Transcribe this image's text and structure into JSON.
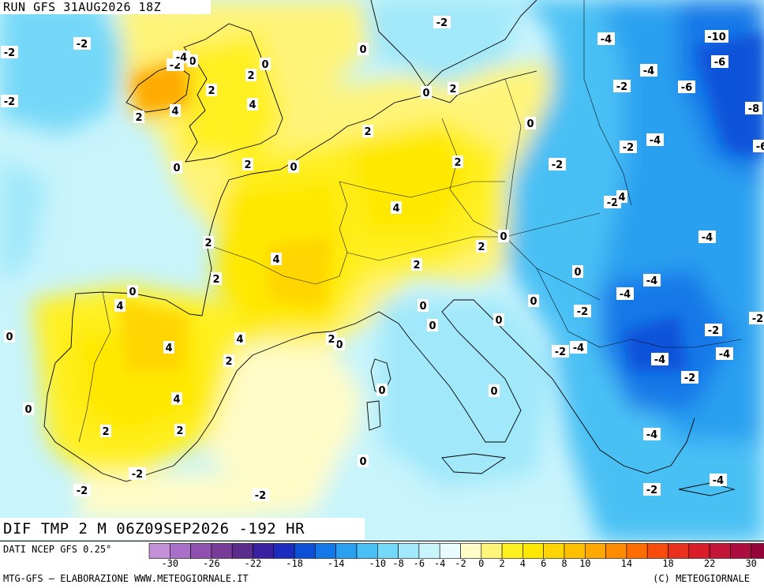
{
  "header": {
    "run_title": "RUN GFS 31AUG2026 18Z",
    "field_title": "DIF TMP 2 M 06Z09SEP2026 -192 HR"
  },
  "footer": {
    "source": "DATI NCEP GFS 0.25°",
    "credit_left": "MTG-GFS – ELABORAZIONE WWW.METEOGIORNALE.IT",
    "credit_right": "(C) METEOGIORNALE"
  },
  "legend": {
    "colors": [
      "#c490d8",
      "#a870c8",
      "#9050b0",
      "#783c98",
      "#5c2c8c",
      "#3820a0",
      "#1c2cc0",
      "#0c50d8",
      "#1478e8",
      "#2ca0f0",
      "#48c0f4",
      "#74d8f8",
      "#a0e8fa",
      "#c8f4fc",
      "#e6fcfe",
      "#fffcc8",
      "#fff47a",
      "#fff020",
      "#ffe800",
      "#ffd400",
      "#ffc000",
      "#ffa800",
      "#ff8c00",
      "#ff6c00",
      "#f84c0c",
      "#e8301c",
      "#d81c28",
      "#c41438",
      "#ac0c40",
      "#940438"
    ],
    "ticks": [
      "-30",
      "-26",
      "-22",
      "-18",
      "-14",
      "-10",
      "-8",
      "-6",
      "-4",
      "-2",
      "0",
      "2",
      "4",
      "6",
      "8",
      "10",
      "14",
      "18",
      "22",
      "30"
    ]
  },
  "map_labels": [
    {
      "text": "-2"
    },
    {
      "text": "-2"
    },
    {
      "text": "-2"
    },
    {
      "text": "-2"
    },
    {
      "text": "0"
    },
    {
      "text": "-4"
    },
    {
      "text": "-2"
    },
    {
      "text": "0"
    },
    {
      "text": "2"
    },
    {
      "text": "2"
    },
    {
      "text": "4"
    },
    {
      "text": "4"
    },
    {
      "text": "2"
    },
    {
      "text": "0"
    },
    {
      "text": "-2"
    },
    {
      "text": "0"
    },
    {
      "text": "0"
    },
    {
      "text": "2"
    },
    {
      "text": "0"
    },
    {
      "text": "-4"
    },
    {
      "text": "-10"
    },
    {
      "text": "-6"
    },
    {
      "text": "-4"
    },
    {
      "text": "-2"
    },
    {
      "text": "-6"
    },
    {
      "text": "-8"
    },
    {
      "text": "-2"
    },
    {
      "text": "-4"
    },
    {
      "text": "-6"
    },
    {
      "text": "2"
    },
    {
      "text": "0"
    },
    {
      "text": "2"
    },
    {
      "text": "0"
    },
    {
      "text": "2"
    },
    {
      "text": "-2"
    },
    {
      "text": "-2"
    },
    {
      "text": "4"
    },
    {
      "text": "-4"
    },
    {
      "text": "4"
    },
    {
      "text": "2"
    },
    {
      "text": "2"
    },
    {
      "text": "2"
    },
    {
      "text": "4"
    },
    {
      "text": "0"
    },
    {
      "text": "2"
    },
    {
      "text": "0"
    },
    {
      "text": "-4"
    },
    {
      "text": "-4"
    },
    {
      "text": "-2"
    },
    {
      "text": "0"
    },
    {
      "text": "0"
    },
    {
      "text": "4"
    },
    {
      "text": "4"
    },
    {
      "text": "2"
    },
    {
      "text": "0"
    },
    {
      "text": "0"
    },
    {
      "text": "-2"
    },
    {
      "text": "-4"
    },
    {
      "text": "-2"
    },
    {
      "text": "-4"
    },
    {
      "text": "0"
    },
    {
      "text": "-2"
    },
    {
      "text": "-4"
    },
    {
      "text": "-2"
    },
    {
      "text": "0"
    },
    {
      "text": "4"
    },
    {
      "text": "2"
    },
    {
      "text": "4"
    },
    {
      "text": "0"
    },
    {
      "text": "0"
    },
    {
      "text": "2"
    },
    {
      "text": "2"
    },
    {
      "text": "0"
    },
    {
      "text": "0"
    },
    {
      "text": "-4"
    },
    {
      "text": "-2"
    },
    {
      "text": "-2"
    },
    {
      "text": "0"
    },
    {
      "text": "-2"
    },
    {
      "text": "-2"
    },
    {
      "text": "-2"
    },
    {
      "text": "-4"
    }
  ]
}
